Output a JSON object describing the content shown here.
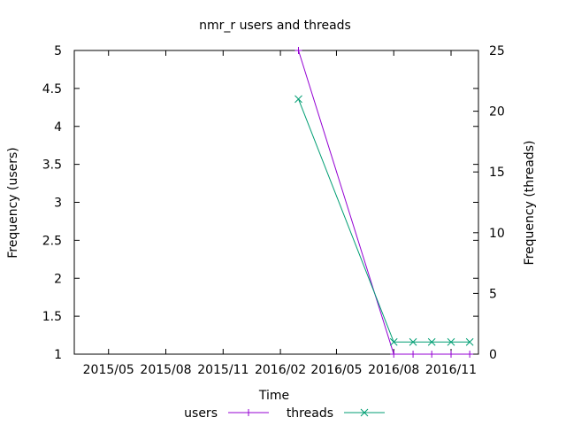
{
  "chart_data": {
    "type": "line",
    "title": "nmr_r users and threads",
    "xlabel": "Time",
    "ylabel_left": "Frequency (users)",
    "ylabel_right": "Frequency (threads)",
    "y_left_range": [
      1,
      5
    ],
    "y_right_range": [
      0,
      25
    ],
    "x_range": [
      "2015-03-07",
      "2016-12-15"
    ],
    "y_left_ticks": [
      "1",
      "1.5",
      "2",
      "2.5",
      "3",
      "3.5",
      "4",
      "4.5",
      "5"
    ],
    "y_right_ticks": [
      "0",
      "5",
      "10",
      "15",
      "20",
      "25"
    ],
    "x_ticks": [
      {
        "date": "2015-05-01",
        "label": "2015/05"
      },
      {
        "date": "2015-08-01",
        "label": "2015/08"
      },
      {
        "date": "2015-11-01",
        "label": "2015/11"
      },
      {
        "date": "2016-02-01",
        "label": "2016/02"
      },
      {
        "date": "2016-05-01",
        "label": "2016/05"
      },
      {
        "date": "2016-08-01",
        "label": "2016/08"
      },
      {
        "date": "2016-11-01",
        "label": "2016/11"
      }
    ],
    "grid": false,
    "legend_position": "bottom",
    "series": [
      {
        "name": "users",
        "axis": "left",
        "color": "#9400d3",
        "marker": "plus",
        "points": [
          {
            "x": "2016-03-01",
            "y": 5
          },
          {
            "x": "2016-08-01",
            "y": 1
          },
          {
            "x": "2016-09-01",
            "y": 1
          },
          {
            "x": "2016-10-01",
            "y": 1
          },
          {
            "x": "2016-11-01",
            "y": 1
          },
          {
            "x": "2016-12-01",
            "y": 1
          }
        ]
      },
      {
        "name": "threads",
        "axis": "right",
        "color": "#009e73",
        "marker": "x",
        "points": [
          {
            "x": "2016-03-01",
            "y": 21
          },
          {
            "x": "2016-08-01",
            "y": 1
          },
          {
            "x": "2016-09-01",
            "y": 1
          },
          {
            "x": "2016-10-01",
            "y": 1
          },
          {
            "x": "2016-11-01",
            "y": 1
          },
          {
            "x": "2016-12-01",
            "y": 1
          }
        ]
      }
    ]
  }
}
